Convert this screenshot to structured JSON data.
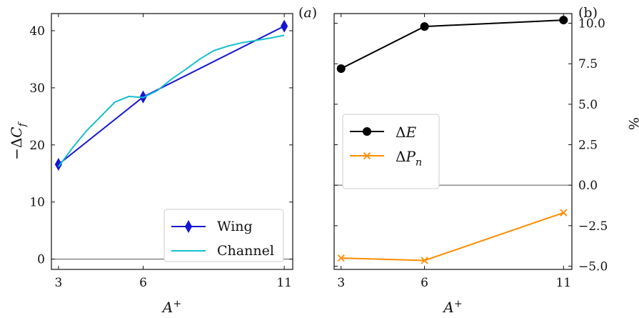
{
  "chart_data": [
    {
      "type": "line",
      "panel_label": "(a)",
      "xlabel": "A⁺",
      "ylabel": "−ΔC_f",
      "x_ticks": [
        3,
        6,
        11
      ],
      "y_ticks": [
        0,
        10,
        20,
        30,
        40
      ],
      "xlim": [
        2.75,
        11.3
      ],
      "ylim": [
        -1.8,
        43
      ],
      "reference_line_y": 0,
      "legend_position": "lower-right",
      "series": [
        {
          "name": "Wing",
          "color": "#1515d6",
          "marker": "thin-diamond",
          "x": [
            3,
            6,
            11
          ],
          "y": [
            16.6,
            28.4,
            40.8
          ]
        },
        {
          "name": "Channel",
          "color": "#17becf",
          "marker": "none",
          "x": [
            3,
            3.5,
            4,
            4.5,
            5,
            5.5,
            6,
            6.5,
            7,
            7.5,
            8,
            8.5,
            9,
            9.5,
            10,
            10.5,
            11
          ],
          "y": [
            16.2,
            19.5,
            22.5,
            25.0,
            27.5,
            28.5,
            28.3,
            29.5,
            31.5,
            33.2,
            35.0,
            36.5,
            37.3,
            37.9,
            38.3,
            38.7,
            39.2
          ]
        }
      ]
    },
    {
      "type": "line",
      "panel_label": "(b)",
      "xlabel": "A⁺",
      "ylabel": "%",
      "x_ticks": [
        3,
        6,
        11
      ],
      "y_ticks": [
        -5.0,
        -2.5,
        0.0,
        2.5,
        5.0,
        7.5,
        10.0
      ],
      "y_tick_labels": [
        "−5.0",
        "−2.5",
        "0.0",
        "2.5",
        "5.0",
        "7.5",
        "10.0"
      ],
      "y_axis_side": "right",
      "xlim": [
        2.75,
        11.3
      ],
      "ylim": [
        -5.2,
        10.6
      ],
      "reference_line_y": 0,
      "legend_position": "center-left",
      "series": [
        {
          "name": "ΔE",
          "color": "#000000",
          "marker": "circle",
          "x": [
            3,
            6,
            11
          ],
          "y": [
            7.2,
            9.8,
            10.2
          ]
        },
        {
          "name": "ΔP_n",
          "color": "#ff8c00",
          "marker": "x",
          "x": [
            3,
            6,
            11
          ],
          "y": [
            -4.5,
            -4.65,
            -1.7
          ]
        }
      ]
    }
  ]
}
